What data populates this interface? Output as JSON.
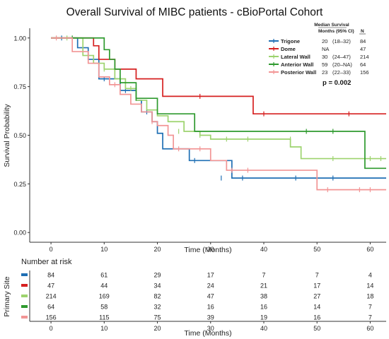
{
  "chart_data": [
    {
      "type": "line",
      "subtype": "kaplan-meier",
      "title": "Overall Survival of MIBC patients - cBioPortal Cohort",
      "xlabel": "Time (Months)",
      "ylabel": "Survival Probability",
      "xlim": [
        -4,
        63
      ],
      "ylim": [
        -0.05,
        1.05
      ],
      "xticks": [
        0,
        10,
        20,
        30,
        40,
        50,
        60
      ],
      "xtick_labels": [
        "0",
        "10",
        "20",
        "30",
        "40",
        "50",
        "60"
      ],
      "yticks": [
        0,
        0.25,
        0.5,
        0.75,
        1
      ],
      "ytick_labels": [
        "0.00",
        "0.25",
        "0.50",
        "0.75",
        "1.00"
      ],
      "legend_position": "top-right",
      "legend_header": {
        "median_line1": "Median Survival",
        "median_line2": "Months",
        "ci_label": "(95% CI)",
        "n_label": "N"
      },
      "p_value_label": "p = 0.002",
      "series": [
        {
          "name": "Trigone",
          "color": "#1f6fb4",
          "median": "20",
          "ci": "(18–32)",
          "n": "84",
          "x": [
            0,
            5,
            7,
            9,
            11,
            13,
            16,
            17,
            19,
            20,
            21,
            26,
            34,
            61,
            63
          ],
          "y": [
            1.0,
            0.95,
            0.89,
            0.79,
            0.79,
            0.73,
            0.68,
            0.62,
            0.57,
            0.51,
            0.43,
            0.37,
            0.28,
            0.28,
            0.28
          ],
          "censor_x": [
            2,
            10,
            14,
            18,
            27,
            32,
            36,
            46,
            53
          ],
          "censor_y": [
            1.0,
            0.79,
            0.73,
            0.62,
            0.37,
            0.28,
            0.28,
            0.28,
            0.28
          ]
        },
        {
          "name": "Dome",
          "color": "#d62020",
          "median": "NA",
          "ci": "",
          "n": "47",
          "x": [
            0,
            8,
            9,
            12,
            16,
            21,
            38,
            63
          ],
          "y": [
            1.0,
            0.96,
            0.89,
            0.84,
            0.79,
            0.7,
            0.61,
            0.61
          ],
          "censor_x": [
            28,
            40,
            56
          ],
          "censor_y": [
            0.7,
            0.61,
            0.61
          ]
        },
        {
          "name": "Lateral Wall",
          "color": "#9dd36e",
          "median": "30",
          "ci": "(24–47)",
          "n": "214",
          "x": [
            0,
            6,
            8,
            10,
            12,
            14,
            16,
            18,
            20,
            22,
            25,
            28,
            30,
            45,
            47,
            63
          ],
          "y": [
            1.0,
            0.91,
            0.87,
            0.84,
            0.79,
            0.74,
            0.68,
            0.63,
            0.6,
            0.57,
            0.52,
            0.5,
            0.48,
            0.44,
            0.38,
            0.38
          ],
          "censor_x": [
            3,
            10,
            13,
            15,
            24,
            28,
            33,
            37,
            45,
            53,
            60,
            62
          ],
          "censor_y": [
            1.0,
            0.84,
            0.79,
            0.74,
            0.52,
            0.5,
            0.48,
            0.48,
            0.48,
            0.38,
            0.38,
            0.38
          ]
        },
        {
          "name": "Anterior Wall",
          "color": "#2e9a2e",
          "median": "59",
          "ci": "(20–NA)",
          "n": "64",
          "x": [
            0,
            10,
            11,
            12,
            13,
            16,
            20,
            27,
            59,
            63
          ],
          "y": [
            1.0,
            0.94,
            0.89,
            0.84,
            0.77,
            0.69,
            0.61,
            0.52,
            0.33,
            0.33
          ],
          "censor_x": [
            4,
            16,
            48,
            53
          ],
          "censor_y": [
            1.0,
            0.69,
            0.52,
            0.52
          ]
        },
        {
          "name": "Posterior Wall",
          "color": "#f29595",
          "median": "23",
          "ci": "(22–33)",
          "n": "156",
          "x": [
            0,
            4,
            7,
            9,
            11,
            13,
            15,
            17,
            19,
            20,
            22,
            23,
            26,
            30,
            33,
            50,
            63
          ],
          "y": [
            1.0,
            0.93,
            0.87,
            0.8,
            0.76,
            0.71,
            0.66,
            0.62,
            0.57,
            0.55,
            0.5,
            0.43,
            0.43,
            0.37,
            0.32,
            0.22,
            0.22
          ],
          "censor_x": [
            1,
            12,
            19,
            24,
            28,
            34,
            37,
            52,
            58,
            60
          ],
          "censor_y": [
            1.0,
            0.76,
            0.57,
            0.43,
            0.43,
            0.32,
            0.32,
            0.22,
            0.22,
            0.22
          ]
        }
      ]
    },
    {
      "type": "table",
      "title": "Number at risk",
      "xlabel": "Time (Months)",
      "ylabel": "Primary Site",
      "xlim": [
        -4,
        63
      ],
      "columns": [
        "0",
        "10",
        "20",
        "30",
        "40",
        "50",
        "60"
      ],
      "rows": [
        {
          "color": "#1f6fb4",
          "values": [
            "84",
            "61",
            "29",
            "17",
            "7",
            "7",
            "4"
          ]
        },
        {
          "color": "#d62020",
          "values": [
            "47",
            "44",
            "34",
            "24",
            "21",
            "17",
            "14"
          ]
        },
        {
          "color": "#9dd36e",
          "values": [
            "214",
            "169",
            "82",
            "47",
            "38",
            "27",
            "18"
          ]
        },
        {
          "color": "#2e9a2e",
          "values": [
            "64",
            "58",
            "32",
            "16",
            "16",
            "14",
            "7"
          ]
        },
        {
          "color": "#f29595",
          "values": [
            "156",
            "115",
            "75",
            "39",
            "19",
            "16",
            "7"
          ]
        }
      ]
    }
  ]
}
